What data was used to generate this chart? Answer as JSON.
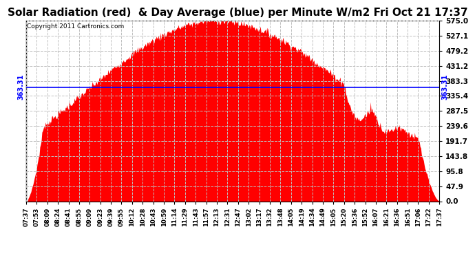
{
  "title": "Solar Radiation (red)  & Day Average (blue) per Minute W/m2 Fri Oct 21 17:37",
  "copyright": "Copyright 2011 Cartronics.com",
  "y_max": 575.0,
  "y_min": 0.0,
  "y_ticks": [
    575.0,
    527.1,
    479.2,
    431.2,
    383.3,
    335.4,
    287.5,
    239.6,
    191.7,
    143.8,
    95.8,
    47.9,
    0.0
  ],
  "day_average": 363.31,
  "fill_color": "#FF0000",
  "avg_line_color": "#0000FF",
  "bg_color": "#FFFFFF",
  "grid_color": "#C0C0C0",
  "title_fontsize": 11,
  "peak_value": 575.0,
  "x_tick_labels": [
    "07:37",
    "07:53",
    "08:09",
    "08:24",
    "08:41",
    "08:55",
    "09:09",
    "09:23",
    "09:39",
    "09:55",
    "10:12",
    "10:28",
    "10:43",
    "10:59",
    "11:14",
    "11:29",
    "11:43",
    "11:57",
    "12:13",
    "12:31",
    "12:47",
    "13:02",
    "13:17",
    "13:32",
    "13:48",
    "14:05",
    "14:19",
    "14:34",
    "14:49",
    "15:05",
    "15:20",
    "15:36",
    "15:52",
    "16:07",
    "16:21",
    "16:36",
    "16:51",
    "17:06",
    "17:22",
    "17:37"
  ]
}
